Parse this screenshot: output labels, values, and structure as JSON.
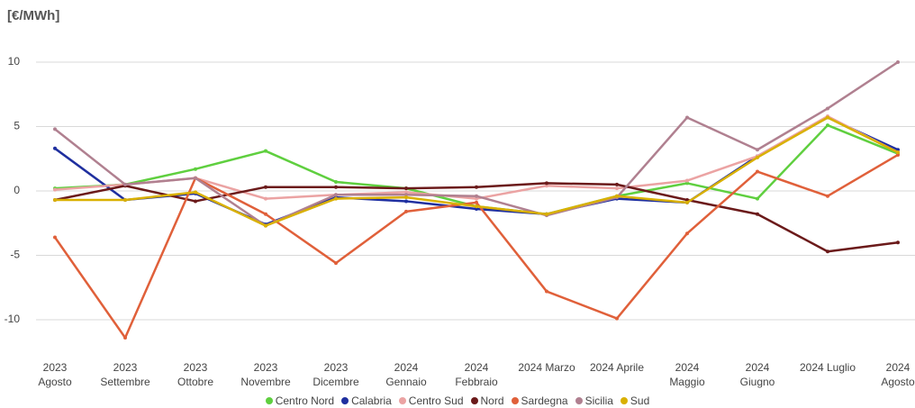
{
  "chart_data": {
    "type": "line",
    "title": "[€/MWh]",
    "categories": [
      "2023\nAgosto",
      "2023\nSettembre",
      "2023\nOttobre",
      "2023\nNovembre",
      "2023\nDicembre",
      "2024\nGennaio",
      "2024\nFebbraio",
      "2024 Marzo",
      "2024 Aprile",
      "2024\nMaggio",
      "2024\nGiugno",
      "2024 Luglio",
      "2024\nAgosto"
    ],
    "series": [
      {
        "name": "Centro Nord",
        "color": "#5fcf3f",
        "values": [
          0.2,
          0.5,
          1.7,
          3.1,
          0.7,
          0.2,
          -1.2,
          -1.8,
          -0.4,
          0.6,
          -0.6,
          5.1,
          2.9
        ]
      },
      {
        "name": "Calabria",
        "color": "#1f2f9f",
        "values": [
          3.3,
          -0.7,
          -0.2,
          -2.6,
          -0.5,
          -0.8,
          -1.4,
          -1.8,
          -0.6,
          -0.9,
          2.7,
          5.7,
          3.2
        ]
      },
      {
        "name": "Centro Sud",
        "color": "#eba3a3",
        "values": [
          0.1,
          0.5,
          1.0,
          -0.6,
          -0.3,
          -0.1,
          -0.6,
          0.4,
          0.2,
          0.8,
          2.7,
          5.8,
          3.0
        ]
      },
      {
        "name": "Nord",
        "color": "#6b1a1a",
        "values": [
          -0.7,
          0.4,
          -0.8,
          0.3,
          0.3,
          0.2,
          0.3,
          0.6,
          0.5,
          -0.7,
          -1.8,
          -4.7,
          -4.0
        ]
      },
      {
        "name": "Sardegna",
        "color": "#e0603a",
        "values": [
          -3.6,
          -11.4,
          1.0,
          -1.8,
          -5.6,
          -1.6,
          -0.9,
          -7.8,
          -9.9,
          -3.3,
          1.5,
          -0.4,
          2.8
        ]
      },
      {
        "name": "Sicilia",
        "color": "#b08090",
        "values": [
          4.8,
          0.5,
          1.0,
          -2.7,
          -0.3,
          -0.3,
          -0.4,
          -1.9,
          -0.5,
          5.7,
          3.2,
          6.4,
          10.0
        ]
      },
      {
        "name": "Sud",
        "color": "#d9b000",
        "values": [
          -0.7,
          -0.7,
          -0.1,
          -2.7,
          -0.6,
          -0.5,
          -1.2,
          -1.8,
          -0.4,
          -0.9,
          2.6,
          5.7,
          3.0
        ]
      }
    ],
    "ylim": [
      -12.5,
      11
    ],
    "yticks": [
      10,
      5,
      0,
      -5,
      -10
    ],
    "grid": true
  }
}
